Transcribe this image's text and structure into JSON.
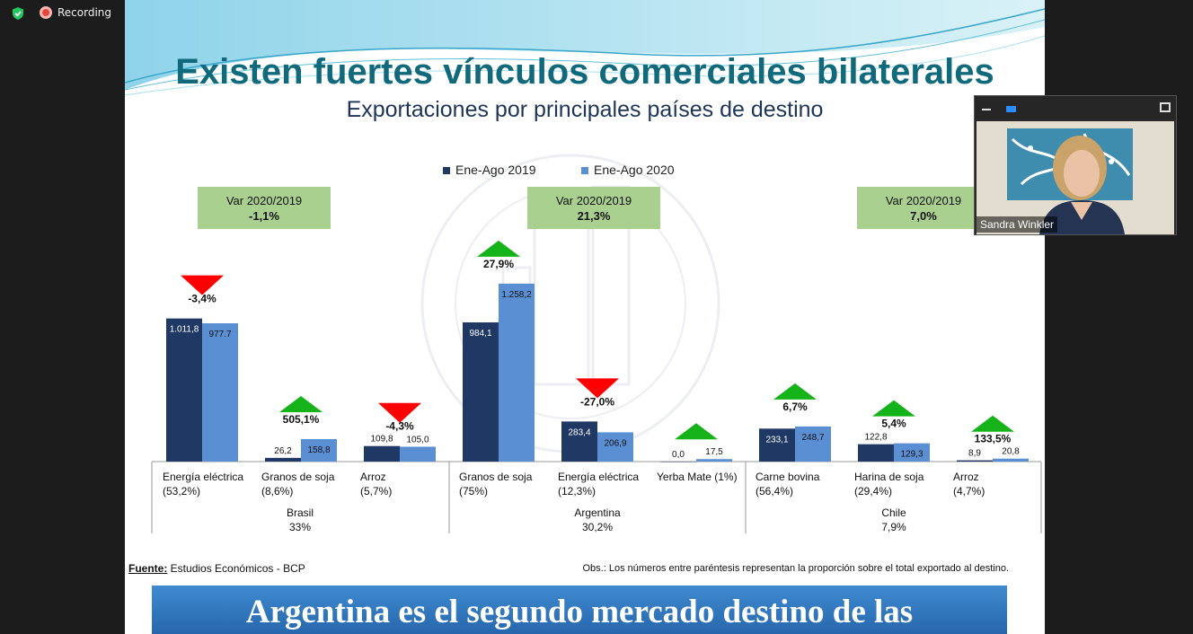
{
  "app": {
    "recording_label": "Recording",
    "icons": {
      "security": "shield-check-icon",
      "recording": "record-dot-icon",
      "minimize": "minimize-icon",
      "camera": "camera-icon",
      "fullscreen": "fullscreen-icon"
    }
  },
  "slide": {
    "title": "Existen fuertes vínculos comerciales bilaterales",
    "subtitle": "Exportaciones por principales países de destino",
    "footer_source_label": "Fuente:",
    "footer_source_text": " Estudios Económicos - BCP",
    "footer_obs": "Obs.: Los números entre paréntesis representan la proporción sobre el total exportado al destino.",
    "banner_text": "Argentina es el segundo mercado destino de las"
  },
  "participant": {
    "name": "Sandra Winkler"
  },
  "chart_data": {
    "type": "bar",
    "colors": {
      "2019": "#1f3864",
      "2020": "#5b8fd4",
      "up": "#16b21a",
      "down": "#ff0000",
      "var_box": "#a9d08e"
    },
    "series": [
      {
        "name": "Ene-Ago 2019",
        "values": [
          1011.8,
          26.2,
          109.8,
          984.1,
          283.4,
          0.0,
          233.1,
          122.8,
          8.9
        ]
      },
      {
        "name": "Ene-Ago 2020",
        "values": [
          977.7,
          158.8,
          105.0,
          1258.2,
          206.9,
          17.5,
          248.7,
          129.3,
          20.8
        ]
      }
    ],
    "categories": [
      {
        "name": "Energía eléctrica",
        "share": "(53,2%)",
        "label2019": "1.011,8",
        "label2020": "977.7",
        "change": "-3,4%",
        "dir": "down"
      },
      {
        "name": "Granos de soja",
        "share": "(8,6%)",
        "label2019": "26,2",
        "label2020": "158,8",
        "change": "505,1%",
        "dir": "up"
      },
      {
        "name": "Arroz",
        "share": "(5,7%)",
        "label2019": "109,8",
        "label2020": "105,0",
        "change": "-4,3%",
        "dir": "down"
      },
      {
        "name": "Granos de soja",
        "share": "(75%)",
        "label2019": "984,1",
        "label2020": "1.258,2",
        "change": "27,9%",
        "dir": "up"
      },
      {
        "name": "Energía eléctrica",
        "share": "(12,3%)",
        "label2019": "283,4",
        "label2020": "206,9",
        "change": "-27,0%",
        "dir": "down"
      },
      {
        "name": "Yerba Mate  (1%)",
        "share": "",
        "label2019": "0,0",
        "label2020": "17,5",
        "change": "",
        "dir": "up"
      },
      {
        "name": "Carne bovina",
        "share": "(56,4%)",
        "label2019": "233,1",
        "label2020": "248,7",
        "change": "6,7%",
        "dir": "up"
      },
      {
        "name": "Harina de soja",
        "share": "(29,4%)",
        "label2019": "122,8",
        "label2020": "129,3",
        "change": "5,4%",
        "dir": "up"
      },
      {
        "name": "Arroz",
        "share": "(4,7%)",
        "label2019": "8,9",
        "label2020": "20,8",
        "change": "133,5%",
        "dir": "up"
      }
    ],
    "groups": [
      {
        "country": "Brasil",
        "share": "33%",
        "var_label": "Var 2020/2019",
        "var_value": "-1,1%"
      },
      {
        "country": "Argentina",
        "share": "30,2%",
        "var_label": "Var 2020/2019",
        "var_value": "21,3%"
      },
      {
        "country": "Chile",
        "share": "7,9%",
        "var_label": "Var 2020/2019",
        "var_value": "7,0%"
      }
    ]
  }
}
